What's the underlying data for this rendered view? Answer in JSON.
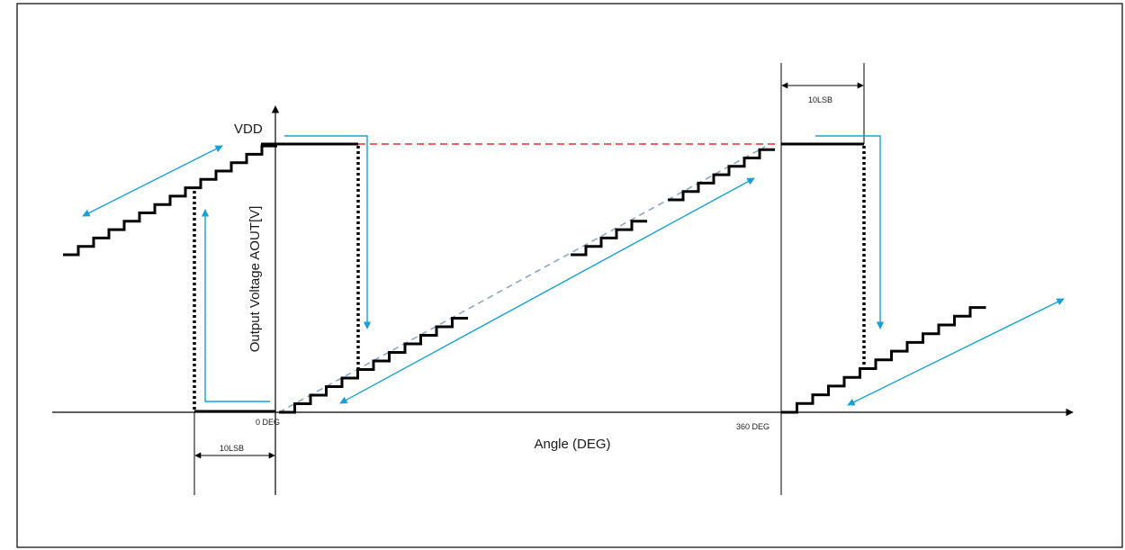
{
  "labels": {
    "vdd": "VDD",
    "y_axis": "Output Voltage AOUT[V]",
    "x_axis": "Angle (DEG)",
    "zero_deg": "0 DEG",
    "deg_360": "360 DEG",
    "lsb_left": "10LSB",
    "lsb_right": "10LSB"
  },
  "colors": {
    "ink": "#000000",
    "arrow": "#17a0d8",
    "vdd_dashed": "#e83030",
    "ideal_dashed": "#8aa8c8"
  }
}
